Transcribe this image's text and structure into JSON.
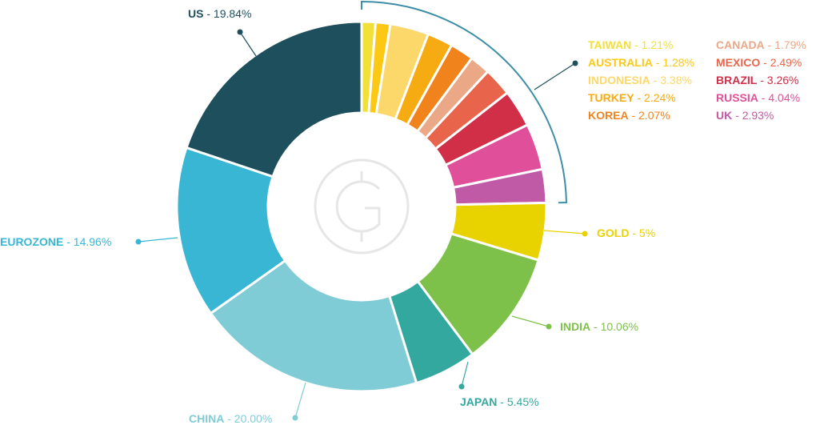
{
  "chart_data": {
    "type": "donut",
    "label_separator": " - ",
    "categories": [
      "TAIWAN",
      "AUSTRALIA",
      "INDONESIA",
      "TURKEY",
      "KOREA",
      "CANADA",
      "MEXICO",
      "BRAZIL",
      "RUSSIA",
      "UK",
      "GOLD",
      "INDIA",
      "JAPAN",
      "CHINA",
      "EUROZONE",
      "US"
    ],
    "values": [
      1.21,
      1.28,
      3.38,
      2.24,
      2.07,
      1.79,
      2.49,
      3.26,
      4.04,
      2.93,
      5,
      10.06,
      5.45,
      20.0,
      14.96,
      19.84
    ],
    "value_labels": [
      "1.21%",
      "1.28%",
      "3.38%",
      "2.24%",
      "2.07%",
      "1.79%",
      "2.49%",
      "3.26%",
      "4.04%",
      "2.93%",
      "5%",
      "10.06%",
      "5.45%",
      "20.00%",
      "14.96%",
      "19.84%"
    ],
    "colors": [
      "#f1df3a",
      "#fcc814",
      "#fcd86a",
      "#f7ab12",
      "#f0831c",
      "#eaa886",
      "#e8644a",
      "#d12e48",
      "#e0509a",
      "#c05aa6",
      "#e8d200",
      "#7dc14b",
      "#33a89e",
      "#80ccd6",
      "#38b6d4",
      "#1e4f5c"
    ]
  }
}
